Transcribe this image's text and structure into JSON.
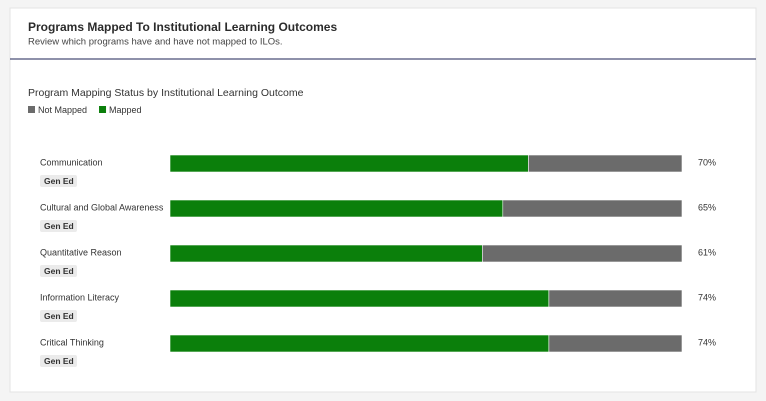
{
  "header": {
    "title": "Programs Mapped To Institutional Learning Outcomes",
    "subtitle": "Review which programs have and have not mapped to ILOs."
  },
  "chart_data": {
    "type": "stacked-bar-horizontal",
    "title": "Program Mapping Status by Institutional Learning Outcome",
    "categories": [
      "Communication",
      "Cultural and Global Awareness",
      "Quantitative Reason",
      "Information Literacy",
      "Critical Thinking"
    ],
    "tags": [
      "Gen Ed",
      "Gen Ed",
      "Gen Ed",
      "Gen Ed",
      "Gen Ed"
    ],
    "series": [
      {
        "name": "Not Mapped",
        "color": "#6b6b6b",
        "values": [
          30,
          35,
          39,
          26,
          26
        ]
      },
      {
        "name": "Mapped",
        "color": "#0b7f0b",
        "values": [
          70,
          65,
          61,
          74,
          74
        ],
        "value_labels": [
          "70%",
          "65%",
          "61%",
          "74%",
          "74%"
        ]
      }
    ],
    "xlim": [
      0,
      100
    ],
    "legend": "top-left"
  }
}
